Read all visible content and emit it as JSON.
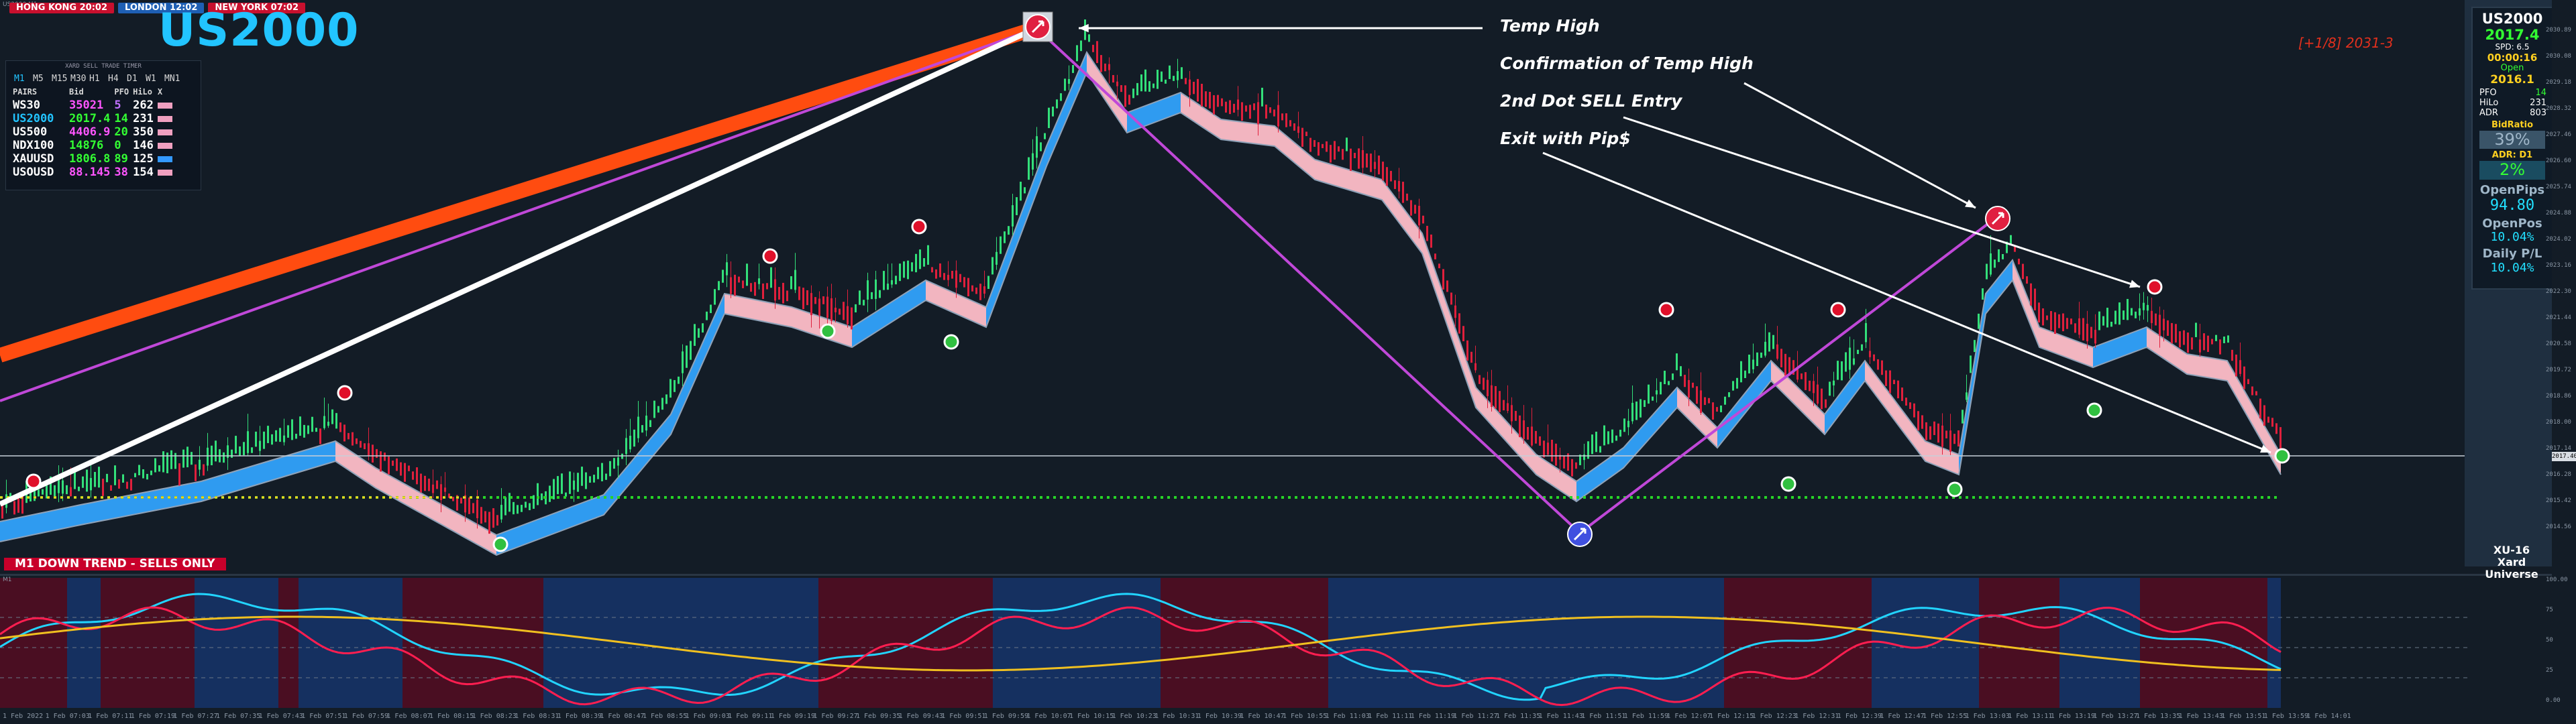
{
  "chart_id_label": "US2000,M1",
  "sessions": [
    {
      "label": "HONG KONG 20:02",
      "color": "#c8102e"
    },
    {
      "label": "LONDON  12:02",
      "color": "#1e5fb4"
    },
    {
      "label": "NEW YORK 07:02",
      "color": "#c8102e"
    }
  ],
  "symbol": "US2000",
  "watchlist": {
    "title": "XARD SELL TRADE TIMER",
    "timeframes": [
      "M1",
      "M5",
      "M15",
      "M30",
      "H1",
      "H4",
      "D1",
      "W1",
      "MN1"
    ],
    "headers": [
      "PAIRS",
      "Bid",
      "PFO",
      "HiLo",
      "X"
    ],
    "rows": [
      {
        "pair": "WS30",
        "bid": "35021",
        "pfo": "5",
        "hilo": "262",
        "bid_color": "#ff55ff",
        "pfo_color": "#c070ff",
        "pair_color": "#ffffff",
        "bar": "#f0a0c0"
      },
      {
        "pair": "US2000",
        "bid": "2017.4",
        "pfo": "14",
        "hilo": "231",
        "bid_color": "#33ff33",
        "pfo_color": "#33ff33",
        "pair_color": "#22c4ff",
        "bar": "#f0a0c0"
      },
      {
        "pair": "US500",
        "bid": "4406.9",
        "pfo": "20",
        "hilo": "350",
        "bid_color": "#ff55ff",
        "pfo_color": "#33ff33",
        "pair_color": "#ffffff",
        "bar": "#f0a0c0"
      },
      {
        "pair": "NDX100",
        "bid": "14876",
        "pfo": "0",
        "hilo": "146",
        "bid_color": "#33ff33",
        "pfo_color": "#33ff33",
        "pair_color": "#ffffff",
        "bar": "#f0a0c0"
      },
      {
        "pair": "XAUUSD",
        "bid": "1806.8",
        "pfo": "89",
        "hilo": "125",
        "bid_color": "#33ff33",
        "pfo_color": "#33ff33",
        "pair_color": "#ffffff",
        "bar": "#3399ff"
      },
      {
        "pair": "USOUSD",
        "bid": "88.145",
        "pfo": "38",
        "hilo": "154",
        "bid_color": "#ff55ff",
        "pfo_color": "#ff55ff",
        "pair_color": "#ffffff",
        "bar": "#f0a0c0"
      }
    ]
  },
  "trend_banner": "M1  DOWN TREND - SELLS ONLY",
  "annotations": [
    "Temp High",
    "Confirmation of Temp High",
    "2nd Dot SELL Entry",
    "Exit with Pip$"
  ],
  "levels_label": "[+1/8]  2031-3",
  "info_panel": {
    "symbol": "US2000",
    "price": "2017.4",
    "spread": "SPD: 6.5",
    "timer": "00:00:16",
    "open_label": "Open",
    "open_value": "2016.1",
    "pfo_label": "PFO",
    "pfo_value": "14",
    "hilo_label": "HiLo",
    "hilo_value": "231",
    "adr_label": "ADR",
    "adr_value": "803",
    "bidratio_label": "BidRatio",
    "bidratio_value": "39%",
    "adr_d1_label": "ADR: D1",
    "adr_d1_value": "2%",
    "openpips_label": "OpenPips",
    "openpips_value": "94.80",
    "openpos_label": "OpenPos",
    "openpos_value": "10.04%",
    "dailypl_label": "Daily P/L",
    "dailypl_value": "10.04%"
  },
  "brand": {
    "line1": "XU-16",
    "line2": "Xard Universe"
  },
  "current_price_tag": "2017.40",
  "price_axis": [
    "2030.89",
    "2030.08",
    "2029.18",
    "2028.32",
    "2027.46",
    "2026.60",
    "2025.74",
    "2024.88",
    "2024.02",
    "2023.16",
    "2022.30",
    "2021.44",
    "2020.58",
    "2019.72",
    "2018.86",
    "2018.00",
    "2017.14",
    "2016.28",
    "2015.42",
    "2014.56"
  ],
  "osc_label": "M1",
  "osc_axis": [
    "100.00",
    "75",
    "50",
    "25",
    "0.00"
  ],
  "time_axis": [
    "1 Feb 2022",
    "1 Feb 07:03",
    "1 Feb 07:11",
    "1 Feb 07:19",
    "1 Feb 07:27",
    "1 Feb 07:35",
    "1 Feb 07:43",
    "1 Feb 07:51",
    "1 Feb 07:59",
    "1 Feb 08:07",
    "1 Feb 08:15",
    "1 Feb 08:23",
    "1 Feb 08:31",
    "1 Feb 08:39",
    "1 Feb 08:47",
    "1 Feb 08:55",
    "1 Feb 09:03",
    "1 Feb 09:11",
    "1 Feb 09:19",
    "1 Feb 09:27",
    "1 Feb 09:35",
    "1 Feb 09:43",
    "1 Feb 09:51",
    "1 Feb 09:59",
    "1 Feb 10:07",
    "1 Feb 10:15",
    "1 Feb 10:23",
    "1 Feb 10:31",
    "1 Feb 10:39",
    "1 Feb 10:47",
    "1 Feb 10:55",
    "1 Feb 11:03",
    "1 Feb 11:11",
    "1 Feb 11:19",
    "1 Feb 11:27",
    "1 Feb 11:35",
    "1 Feb 11:43",
    "1 Feb 11:51",
    "1 Feb 11:59",
    "1 Feb 12:07",
    "1 Feb 12:15",
    "1 Feb 12:23",
    "1 Feb 12:31",
    "1 Feb 12:39",
    "1 Feb 12:47",
    "1 Feb 12:55",
    "1 Feb 13:03",
    "1 Feb 13:11",
    "1 Feb 13:19",
    "1 Feb 13:27",
    "1 Feb 13:35",
    "1 Feb 13:43",
    "1 Feb 13:51",
    "1 Feb 13:59",
    "1 Feb 14:01"
  ],
  "colors": {
    "bull": "#33e07a",
    "bear": "#e0203c",
    "band_up": "#2f9bf0",
    "band_down": "#f2b5c0",
    "osc_cyan": "#22d4ff",
    "osc_red": "#ff1e50",
    "osc_yellow": "#f0c020",
    "bg_blue": "#153060",
    "bg_red": "#4a0e22"
  }
}
